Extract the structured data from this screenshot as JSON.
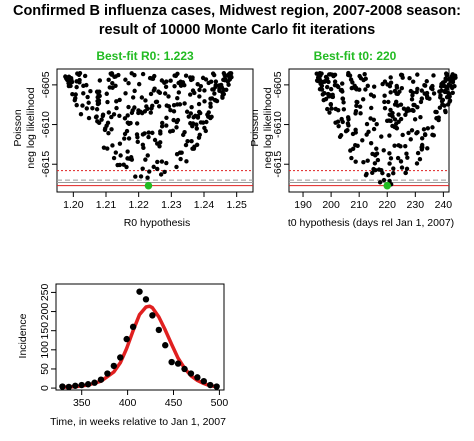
{
  "title": {
    "line1": "Confirmed B influenza cases, Midwest region, 2007-2008 season:",
    "line2": "result of 10000 Monte Carlo fit iterations"
  },
  "colors": {
    "points": "#000000",
    "best_point": "#22bb22",
    "best_title": "#22bb22",
    "fit_curve": "#e02020",
    "min_line": "#e02020",
    "ref_line_gray": "#999999",
    "ref_line_red_dotted": "#e02020"
  },
  "chart_data": [
    {
      "id": "r0_panel",
      "type": "scatter",
      "title": "Best-fit R0: 1.223",
      "xlabel": "R0 hypothesis",
      "ylabel_line1": "Poisson",
      "ylabel_line2": "neg log likelihood",
      "xlim": [
        1.195,
        1.255
      ],
      "ylim": [
        -6618.5,
        -6603
      ],
      "y_reversed": true,
      "xticks": [
        1.2,
        1.21,
        1.22,
        1.23,
        1.24,
        1.25
      ],
      "xtick_labels": [
        "1.20",
        "1.21",
        "1.22",
        "1.23",
        "1.24",
        "1.25"
      ],
      "yticks": [
        -6605,
        -6610,
        -6615
      ],
      "ytick_labels": [
        "-6605",
        "-6610",
        "-6615"
      ],
      "best_fit": {
        "x": 1.223,
        "y": -6617.7
      },
      "hlines": [
        {
          "y": -6617.7,
          "style": "solid",
          "color": "#e02020"
        },
        {
          "y": -6617.3,
          "style": "solid",
          "color": "#999999"
        },
        {
          "y": -6617.0,
          "style": "dashed",
          "color": "#999999"
        },
        {
          "y": -6615.8,
          "style": "dotted",
          "color": "#e02020"
        }
      ],
      "parabola": {
        "center": 1.223,
        "min": -6617.7,
        "half_width_at_top": 0.026,
        "top": -6603.5
      },
      "n_points": 320,
      "seed": 11
    },
    {
      "id": "t0_panel",
      "type": "scatter",
      "title": "Best-fit t0: 220",
      "xlabel": "t0 hypothesis (days rel Jan 1, 2007)",
      "ylabel_line1": "Poisson",
      "ylabel_line2": "neg log likelihood",
      "xlim": [
        185,
        242
      ],
      "ylim": [
        -6618.5,
        -6603
      ],
      "y_reversed": true,
      "xticks": [
        190,
        200,
        210,
        220,
        230,
        240
      ],
      "xtick_labels": [
        "190",
        "200",
        "210",
        "220",
        "230",
        "240"
      ],
      "yticks": [
        -6605,
        -6610,
        -6615
      ],
      "ytick_labels": [
        "-6605",
        "-6610",
        "-6615"
      ],
      "best_fit": {
        "x": 220,
        "y": -6617.7
      },
      "hlines": [
        {
          "y": -6617.7,
          "style": "solid",
          "color": "#e02020"
        },
        {
          "y": -6617.3,
          "style": "solid",
          "color": "#999999"
        },
        {
          "y": -6617.0,
          "style": "dashed",
          "color": "#999999"
        },
        {
          "y": -6615.8,
          "style": "dotted",
          "color": "#e02020"
        }
      ],
      "parabola": {
        "center": 220,
        "min": -6617.7,
        "half_width_at_top": 26,
        "top": -6603.5
      },
      "n_points": 320,
      "seed": 29
    },
    {
      "id": "incidence_panel",
      "type": "line",
      "title": "",
      "xlabel": "Time, in weeks relative to Jan 1, 2007",
      "ylabel": "Incidence",
      "xlim": [
        322,
        505
      ],
      "ylim": [
        -5,
        272
      ],
      "xticks": [
        350,
        400,
        450,
        500
      ],
      "xtick_labels": [
        "350",
        "400",
        "450",
        "500"
      ],
      "yticks": [
        0,
        50,
        100,
        150,
        200,
        250
      ],
      "ytick_labels": [
        "0",
        "50",
        "100",
        "150",
        "200",
        "250"
      ],
      "series": [
        {
          "kind": "points",
          "x": [
            329,
            336,
            343,
            350,
            357,
            364,
            371,
            378,
            385,
            392,
            399,
            406,
            413,
            420,
            427,
            434,
            441,
            448,
            455,
            462,
            469,
            476,
            483,
            490,
            497
          ],
          "y": [
            4,
            3,
            6,
            8,
            10,
            14,
            22,
            38,
            58,
            80,
            128,
            160,
            252,
            232,
            190,
            152,
            112,
            68,
            64,
            50,
            38,
            28,
            18,
            8,
            4
          ]
        },
        {
          "kind": "curve",
          "x": [
            329,
            343,
            357,
            371,
            385,
            392,
            399,
            406,
            413,
            420,
            424,
            427,
            434,
            441,
            448,
            455,
            462,
            469,
            476,
            483,
            490,
            497
          ],
          "y": [
            2,
            4,
            8,
            18,
            42,
            66,
            104,
            150,
            192,
            212,
            214,
            210,
            186,
            152,
            114,
            78,
            52,
            32,
            20,
            12,
            6,
            4
          ]
        }
      ]
    }
  ]
}
